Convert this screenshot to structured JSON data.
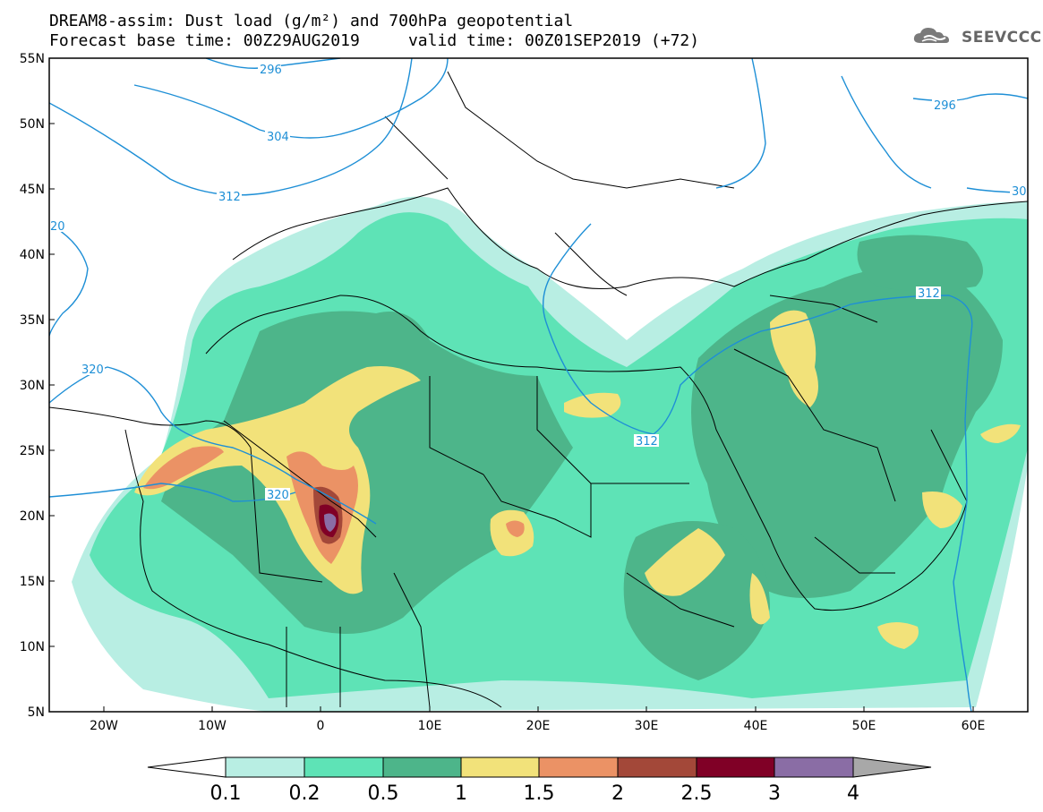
{
  "header": {
    "line1": "DREAM8-assim: Dust load (g/m²) and 700hPa geopotential",
    "line2": "Forecast base time: 00Z29AUG2019     valid time: 00Z01SEP2019 (+72)"
  },
  "logo": {
    "text": "SEEVCCC",
    "icon": "cloud-logo-icon"
  },
  "map": {
    "lon_range": [
      -25,
      65
    ],
    "lat_range": [
      5,
      55
    ],
    "lat_ticks": [
      "5N",
      "10N",
      "15N",
      "20N",
      "25N",
      "30N",
      "35N",
      "40N",
      "45N",
      "50N",
      "55N"
    ],
    "lon_ticks": [
      "20W",
      "10W",
      "0",
      "10E",
      "20E",
      "30E",
      "40E",
      "50E",
      "60E"
    ],
    "contour_labels": [
      "296",
      "304",
      "312",
      "320",
      "20",
      "320",
      "312",
      "312",
      "296",
      "30"
    ]
  },
  "colorbar": {
    "thresholds": [
      "0.1",
      "0.2",
      "0.5",
      "1",
      "1.5",
      "2",
      "2.5",
      "3",
      "4"
    ],
    "colors": [
      "#b8eee3",
      "#5ee3b6",
      "#4db58a",
      "#f2e27a",
      "#eb9265",
      "#a34839",
      "#800026",
      "#8a6da5",
      "#a8a8a8"
    ],
    "under_color": "#ffffff"
  },
  "contour_color": "#1e8fd6"
}
